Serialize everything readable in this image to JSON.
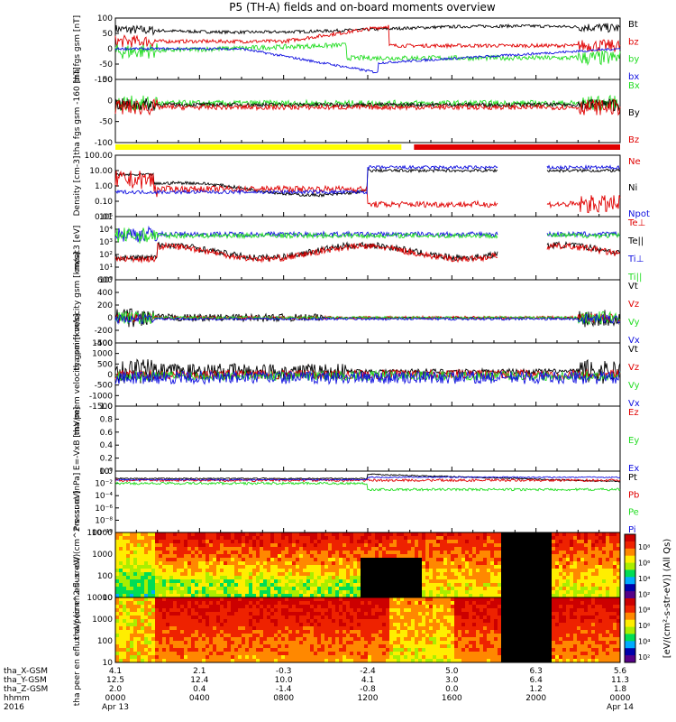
{
  "title": "P5 (TH-A) fields and on-board moments overview",
  "colors": {
    "black": "#000000",
    "red": "#e00000",
    "green": "#22dd22",
    "blue": "#1010e0",
    "yellow": "#ffff00"
  },
  "chart_data": {
    "type": "line",
    "x_ticks": [
      "0000",
      "0400",
      "0800",
      "1200",
      "1600",
      "2000",
      "0000"
    ],
    "time_range_hours": [
      0,
      24
    ],
    "footer": {
      "labels": [
        "tha_X-GSM",
        "tha_Y-GSM",
        "tha_Z-GSM",
        "hhmm",
        "2016"
      ],
      "rows": [
        [
          "4.1",
          "2.1",
          "-0.3",
          "-2.4",
          "5.0",
          "6.3",
          "5.6"
        ],
        [
          "12.5",
          "12.4",
          "10.0",
          "4.1",
          "3.0",
          "6.4",
          "11.3"
        ],
        [
          "2.0",
          "0.4",
          "-1.4",
          "-0.8",
          "0.0",
          "1.2",
          "1.8"
        ],
        [
          "0000",
          "0400",
          "0800",
          "1200",
          "1600",
          "2000",
          "0000"
        ],
        [
          "Apr 13",
          "",
          "",
          "",
          "",
          "",
          "Apr 14"
        ]
      ]
    },
    "panels": [
      {
        "id": "fgs_gsm",
        "ylabel": "tha fgs gsm [nT]",
        "yticks": [
          "100",
          "50",
          "0",
          "-50",
          "-100"
        ],
        "ylim": [
          -100,
          100
        ],
        "series": [
          {
            "name": "Bt",
            "color": "black"
          },
          {
            "name": "bz",
            "color": "red"
          },
          {
            "name": "by",
            "color": "green"
          },
          {
            "name": "bx",
            "color": "blue"
          }
        ]
      },
      {
        "id": "fgs_gse",
        "ylabel": "tha fgs gsm -160 [nT]",
        "yticks": [
          "50",
          "0",
          "-50",
          "-100"
        ],
        "ylim": [
          -125,
          60
        ],
        "series": [
          {
            "name": "Bx",
            "color": "green"
          },
          {
            "name": "By",
            "color": "black"
          },
          {
            "name": "Bz",
            "color": "red"
          }
        ]
      },
      {
        "id": "density",
        "ylabel": "Density [cm-3]",
        "yticks": [
          "100.00",
          "10.00",
          "1.00",
          "0.10",
          "0.01"
        ],
        "scale": "log",
        "series": [
          {
            "name": "Ne",
            "color": "red"
          },
          {
            "name": "Ni",
            "color": "black"
          },
          {
            "name": "Npot",
            "color": "blue"
          }
        ]
      },
      {
        "id": "temperature",
        "ylabel": "moat3 [eV]",
        "yticks": [
          "10⁵",
          "10⁴",
          "10³",
          "10²",
          "10¹",
          "10⁰"
        ],
        "scale": "log",
        "series": [
          {
            "name": "Te⊥",
            "color": "red"
          },
          {
            "name": "Te||",
            "color": "black"
          },
          {
            "name": "Ti⊥",
            "color": "blue"
          },
          {
            "name": "Ti||",
            "color": "green"
          }
        ]
      },
      {
        "id": "peim_vel",
        "ylabel": "tha peim velocity gsm [km/s]",
        "yticks": [
          "600",
          "400",
          "200",
          "0",
          "-200",
          "-400"
        ],
        "ylim": [
          -400,
          600
        ],
        "series": [
          {
            "name": "Vt",
            "color": "black"
          },
          {
            "name": "Vz",
            "color": "red"
          },
          {
            "name": "Vy",
            "color": "green"
          },
          {
            "name": "Vx",
            "color": "blue"
          }
        ]
      },
      {
        "id": "peem_vel",
        "ylabel": "tha peem velocity gsm [km/s]",
        "yticks": [
          "1500",
          "1000",
          "500",
          "0",
          "-500",
          "-1000",
          "-1500"
        ],
        "ylim": [
          -1500,
          1500
        ],
        "series": [
          {
            "name": "Vt",
            "color": "black"
          },
          {
            "name": "Vz",
            "color": "red"
          },
          {
            "name": "Vy",
            "color": "green"
          },
          {
            "name": "Vx",
            "color": "blue"
          }
        ]
      },
      {
        "id": "efield",
        "ylabel": "E=-VxB [mV/m]",
        "yticks": [
          "1.0",
          "0.8",
          "0.6",
          "0.4",
          "0.2",
          "0.0"
        ],
        "ylim": [
          0,
          1
        ],
        "series": [
          {
            "name": "Ez",
            "color": "red"
          },
          {
            "name": "Ey",
            "color": "green"
          },
          {
            "name": "Ex",
            "color": "blue"
          }
        ]
      },
      {
        "id": "pressure",
        "ylabel": "Pressure [nPa]",
        "yticks": [
          "10⁰",
          "10⁻²",
          "10⁻⁴",
          "10⁻⁶",
          "10⁻⁸",
          "10⁻¹⁰"
        ],
        "scale": "log",
        "series": [
          {
            "name": "Pt",
            "color": "black"
          },
          {
            "name": "Pb",
            "color": "red"
          },
          {
            "name": "Pe",
            "color": "green"
          },
          {
            "name": "Pi",
            "color": "blue"
          }
        ]
      },
      {
        "id": "peir_spec",
        "type": "heatmap",
        "ylabel": "tha peir en eflux eV/ (cm^2-s- sr-eV)",
        "yticks": [
          "10000",
          "1000",
          "100",
          "10"
        ]
      },
      {
        "id": "peer_spec",
        "type": "heatmap",
        "ylabel": "tha peer en eflux eV/ (cm^2-s- sr-eV)",
        "yticks": [
          "10000",
          "1000",
          "100",
          "10"
        ]
      }
    ],
    "colorbar": {
      "ticks": [
        "10⁸",
        "10⁶",
        "10⁴",
        "10²",
        "10⁸",
        "10⁶",
        "10⁴",
        "10²"
      ],
      "label": "[eV/(cm²-s-str-eV)] (All Qs)"
    }
  }
}
